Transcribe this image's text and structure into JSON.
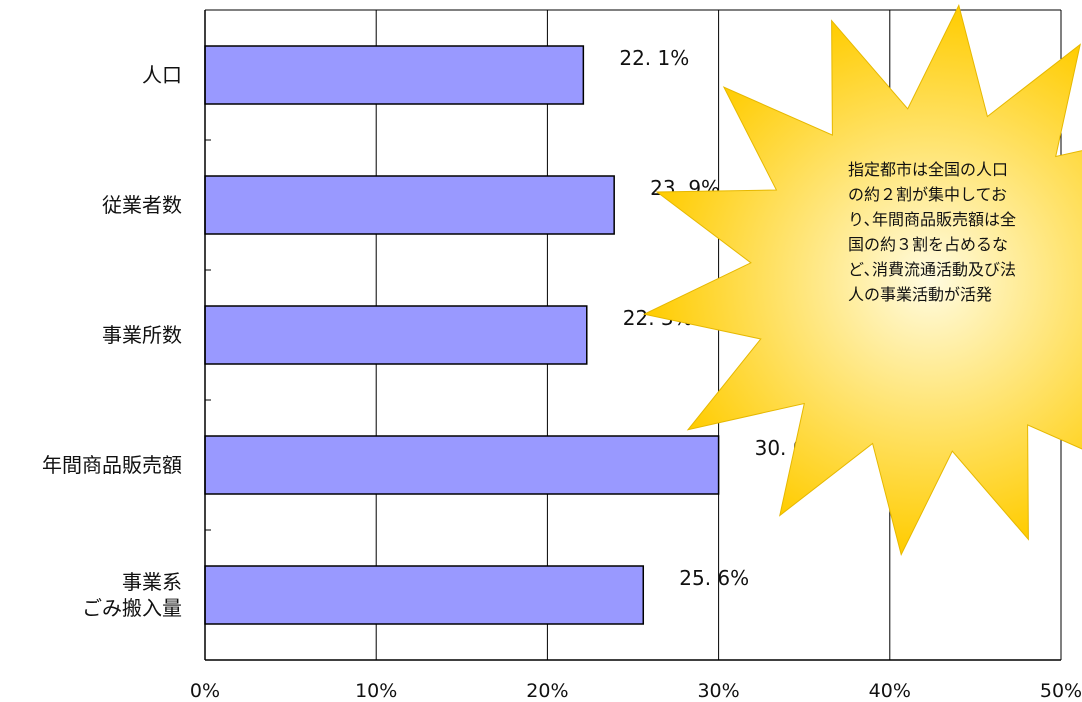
{
  "chart_data": {
    "type": "bar",
    "orientation": "horizontal",
    "categories": [
      [
        "人口"
      ],
      [
        "従業者数"
      ],
      [
        "事業所数"
      ],
      [
        "年間商品販売額"
      ],
      [
        "事業系",
        "ごみ搬入量"
      ]
    ],
    "values": [
      22.1,
      23.9,
      22.3,
      30.0,
      25.6
    ],
    "data_labels": [
      "22. 1%",
      "23. 9%",
      "22. 3%",
      "30. 0%",
      "25. 6%"
    ],
    "xlim": [
      0,
      50
    ],
    "xticks": [
      0,
      10,
      20,
      30,
      40,
      50
    ],
    "xtick_labels": [
      "0%",
      "10%",
      "20%",
      "30%",
      "40%",
      "50%"
    ],
    "grid": true,
    "bar_color": "#9999ff",
    "bar_edge_color": "#000000"
  },
  "callout": {
    "lines": [
      "指定都市は全国の人口",
      "の約２割が集中してお",
      "り､年間商品販売額は全",
      "国の約３割を占めるな",
      "ど､消費流通活動及び法",
      "人の事業活動が活発"
    ],
    "fill_color": "#ffcc00",
    "highlight_color": "#fff3b0"
  }
}
